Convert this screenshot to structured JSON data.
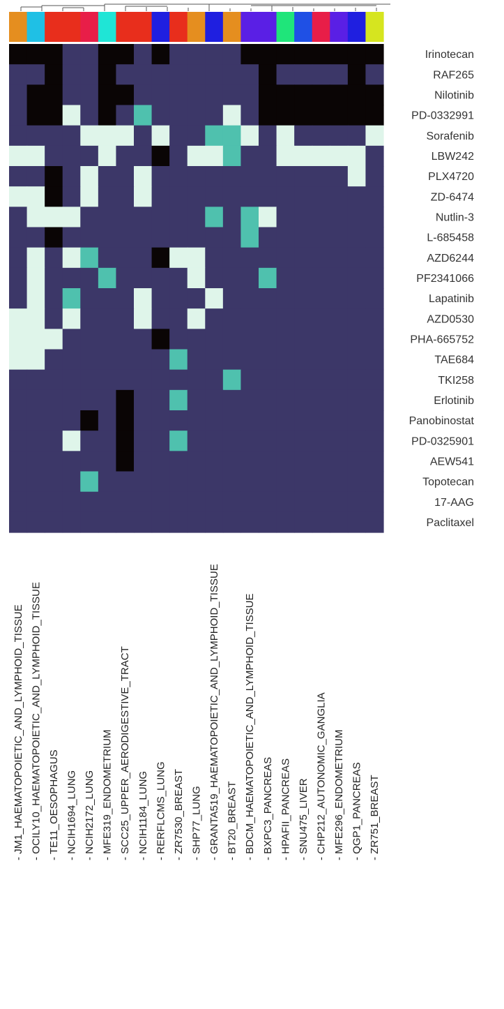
{
  "chart_data": {
    "type": "heatmap",
    "rows": [
      "Irinotecan",
      "RAF265",
      "Nilotinib",
      "PD-0332991",
      "Sorafenib",
      "LBW242",
      "PLX4720",
      "ZD-6474",
      "Nutlin-3",
      "L-685458",
      "AZD6244",
      "PF2341066",
      "Lapatinib",
      "AZD0530",
      "PHA-665752",
      "TAE684",
      "TKI258",
      "Erlotinib",
      "Panobinostat",
      "PD-0325901",
      "AEW541",
      "Topotecan",
      "17-AAG",
      "Paclitaxel"
    ],
    "columns": [
      "JM1_HAEMATOPOIETIC_AND_LYMPHOID_TISSUE",
      "OCILY10_HAEMATOPOIETIC_AND_LYMPHOID_TISSUE",
      "TE11_OESOPHAGUS",
      "NCIH1694_LUNG",
      "NCIH2172_LUNG",
      "MFE319_ENDOMETRIUM",
      "SCC25_UPPER_AERODIGESTIVE_TRACT",
      "NCIH1184_LUNG",
      "RERFLCMS_LUNG",
      "ZR7530_BREAST",
      "SHP77_LUNG",
      "GRANTA519_HAEMATOPOIETIC_AND_LYMPHOID_TISSUE",
      "BT20_BREAST",
      "BDCM_HAEMATOPOIETIC_AND_LYMPHOID_TISSUE",
      "BXPC3_PANCREAS",
      "HPAFII_PANCREAS",
      "SNU475_LIVER",
      "CHP212_AUTONOMIC_GANGLIA",
      "MFE296_ENDOMETRIUM",
      "QGP1_PANCREAS",
      "ZR751_BREAST"
    ],
    "column_colors": [
      "#E58E1F",
      "#1FC0E5",
      "#E82E1C",
      "#E82E1C",
      "#E81E48",
      "#1FE5D6",
      "#E82E1C",
      "#E82E1C",
      "#1F1FE0",
      "#E82E1C",
      "#E58E1F",
      "#1F1FE0",
      "#E58E1F",
      "#5A1FE5",
      "#5A1FE5",
      "#1FE57A",
      "#1F50E5",
      "#E81E48",
      "#5A1FE5",
      "#1F1FE0",
      "#D6E51F"
    ],
    "values": [
      [
        3,
        3,
        3,
        0,
        0,
        3,
        3,
        0,
        3,
        0,
        0,
        0,
        0,
        3,
        3,
        3,
        3,
        3,
        3,
        3,
        3
      ],
      [
        0,
        0,
        3,
        0,
        0,
        3,
        0,
        0,
        0,
        0,
        0,
        0,
        0,
        0,
        3,
        0,
        0,
        0,
        0,
        3,
        0
      ],
      [
        0,
        3,
        3,
        0,
        0,
        3,
        3,
        0,
        0,
        0,
        0,
        0,
        0,
        0,
        3,
        3,
        3,
        3,
        3,
        3,
        3
      ],
      [
        0,
        3,
        3,
        1,
        0,
        3,
        0,
        2,
        0,
        0,
        0,
        0,
        1,
        0,
        3,
        3,
        3,
        3,
        3,
        3,
        3
      ],
      [
        0,
        0,
        0,
        0,
        1,
        1,
        1,
        0,
        1,
        0,
        0,
        2,
        2,
        1,
        0,
        1,
        0,
        0,
        0,
        0,
        1
      ],
      [
        1,
        1,
        0,
        0,
        0,
        1,
        0,
        0,
        3,
        0,
        1,
        1,
        2,
        0,
        0,
        1,
        1,
        1,
        1,
        1,
        0
      ],
      [
        0,
        0,
        3,
        0,
        1,
        0,
        0,
        1,
        0,
        0,
        0,
        0,
        0,
        0,
        0,
        0,
        0,
        0,
        0,
        1,
        0
      ],
      [
        1,
        1,
        3,
        0,
        1,
        0,
        0,
        1,
        0,
        0,
        0,
        0,
        0,
        0,
        0,
        0,
        0,
        0,
        0,
        0,
        0
      ],
      [
        0,
        1,
        1,
        1,
        0,
        0,
        0,
        0,
        0,
        0,
        0,
        2,
        0,
        2,
        1,
        0,
        0,
        0,
        0,
        0,
        0
      ],
      [
        0,
        0,
        3,
        0,
        0,
        0,
        0,
        0,
        0,
        0,
        0,
        0,
        0,
        2,
        0,
        0,
        0,
        0,
        0,
        0,
        0
      ],
      [
        0,
        1,
        0,
        1,
        2,
        0,
        0,
        0,
        3,
        1,
        1,
        0,
        0,
        0,
        0,
        0,
        0,
        0,
        0,
        0,
        0
      ],
      [
        0,
        1,
        0,
        0,
        0,
        2,
        0,
        0,
        0,
        0,
        1,
        0,
        0,
        0,
        2,
        0,
        0,
        0,
        0,
        0,
        0
      ],
      [
        0,
        1,
        0,
        2,
        0,
        0,
        0,
        1,
        0,
        0,
        0,
        1,
        0,
        0,
        0,
        0,
        0,
        0,
        0,
        0,
        0
      ],
      [
        1,
        1,
        0,
        1,
        0,
        0,
        0,
        1,
        0,
        0,
        1,
        0,
        0,
        0,
        0,
        0,
        0,
        0,
        0,
        0,
        0
      ],
      [
        1,
        1,
        1,
        0,
        0,
        0,
        0,
        0,
        3,
        0,
        0,
        0,
        0,
        0,
        0,
        0,
        0,
        0,
        0,
        0,
        0
      ],
      [
        1,
        1,
        0,
        0,
        0,
        0,
        0,
        0,
        0,
        2,
        0,
        0,
        0,
        0,
        0,
        0,
        0,
        0,
        0,
        0,
        0
      ],
      [
        0,
        0,
        0,
        0,
        0,
        0,
        0,
        0,
        0,
        0,
        0,
        0,
        2,
        0,
        0,
        0,
        0,
        0,
        0,
        0,
        0
      ],
      [
        0,
        0,
        0,
        0,
        0,
        0,
        3,
        0,
        0,
        2,
        0,
        0,
        0,
        0,
        0,
        0,
        0,
        0,
        0,
        0,
        0
      ],
      [
        0,
        0,
        0,
        0,
        3,
        0,
        3,
        0,
        0,
        0,
        0,
        0,
        0,
        0,
        0,
        0,
        0,
        0,
        0,
        0,
        0
      ],
      [
        0,
        0,
        0,
        1,
        0,
        0,
        3,
        0,
        0,
        2,
        0,
        0,
        0,
        0,
        0,
        0,
        0,
        0,
        0,
        0,
        0
      ],
      [
        0,
        0,
        0,
        0,
        0,
        0,
        3,
        0,
        0,
        0,
        0,
        0,
        0,
        0,
        0,
        0,
        0,
        0,
        0,
        0,
        0
      ],
      [
        0,
        0,
        0,
        0,
        2,
        0,
        0,
        0,
        0,
        0,
        0,
        0,
        0,
        0,
        0,
        0,
        0,
        0,
        0,
        0,
        0
      ],
      [
        0,
        0,
        0,
        0,
        0,
        0,
        0,
        0,
        0,
        0,
        0,
        0,
        0,
        0,
        0,
        0,
        0,
        0,
        0,
        0,
        0
      ],
      [
        0,
        0,
        0,
        0,
        0,
        0,
        0,
        0,
        0,
        0,
        0,
        0,
        0,
        0,
        0,
        0,
        0,
        0,
        0,
        0,
        0
      ]
    ],
    "value_colors": [
      "#3C3768",
      "#DFF5EA",
      "#4FC1AE",
      "#0A0505"
    ],
    "grid": false,
    "legend": "none"
  }
}
